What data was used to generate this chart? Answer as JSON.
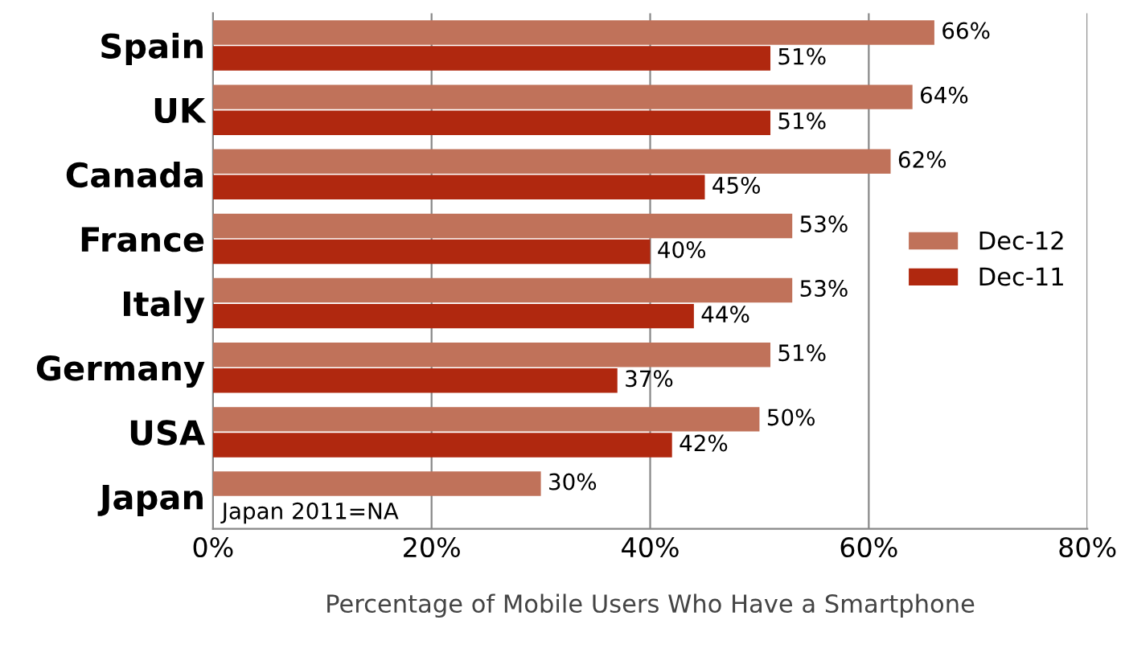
{
  "chart_data": {
    "type": "bar",
    "orientation": "horizontal",
    "xlabel": "Percentage of Mobile Users Who Have a Smartphone",
    "categories": [
      "Spain",
      "UK",
      "Canada",
      "France",
      "Italy",
      "Germany",
      "USA",
      "Japan"
    ],
    "series": [
      {
        "name": "Dec-12",
        "color": "#c0725a",
        "values": [
          66,
          64,
          62,
          53,
          53,
          51,
          50,
          30
        ],
        "value_labels": [
          "66%",
          "64%",
          "62%",
          "53%",
          "53%",
          "51%",
          "50%",
          "30%"
        ]
      },
      {
        "name": "Dec-11",
        "color": "#b0280f",
        "values": [
          51,
          51,
          45,
          40,
          44,
          37,
          42,
          null
        ],
        "value_labels": [
          "51%",
          "51%",
          "45%",
          "40%",
          "44%",
          "37%",
          "42%",
          null
        ]
      }
    ],
    "xlim": [
      0,
      80
    ],
    "xticks": [
      {
        "value": 0,
        "label": "0%"
      },
      {
        "value": 20,
        "label": "20%"
      },
      {
        "value": 40,
        "label": "40%"
      },
      {
        "value": 60,
        "label": "60%"
      },
      {
        "value": 80,
        "label": "80%"
      }
    ],
    "grid": "x",
    "legend": "right",
    "annotations": [
      "Japan 2011=NA"
    ]
  }
}
